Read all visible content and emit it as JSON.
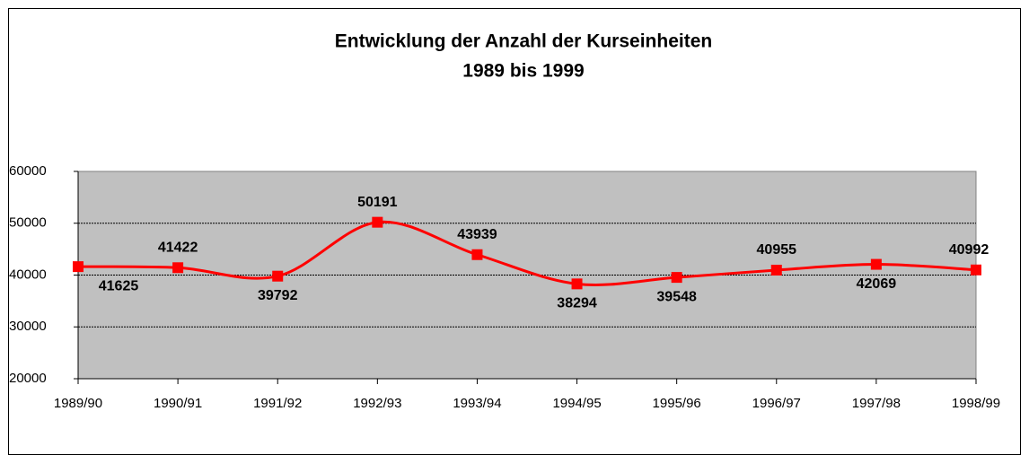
{
  "chart_data": {
    "type": "line",
    "title": "Entwicklung der Anzahl der Kurseinheiten",
    "subtitle": "1989 bis 1999",
    "categories": [
      "1989/90",
      "1990/91",
      "1991/92",
      "1992/93",
      "1993/94",
      "1994/95",
      "1995/96",
      "1996/97",
      "1997/98",
      "1998/99"
    ],
    "series": [
      {
        "name": "Kurseinheiten",
        "color": "#ff0000",
        "values": [
          41625,
          41422,
          39792,
          50191,
          43939,
          38294,
          39548,
          40955,
          42069,
          40992
        ]
      }
    ],
    "ylim": [
      20000,
      60000
    ],
    "yticks": [
      20000,
      30000,
      40000,
      50000,
      60000
    ],
    "grid": true
  }
}
